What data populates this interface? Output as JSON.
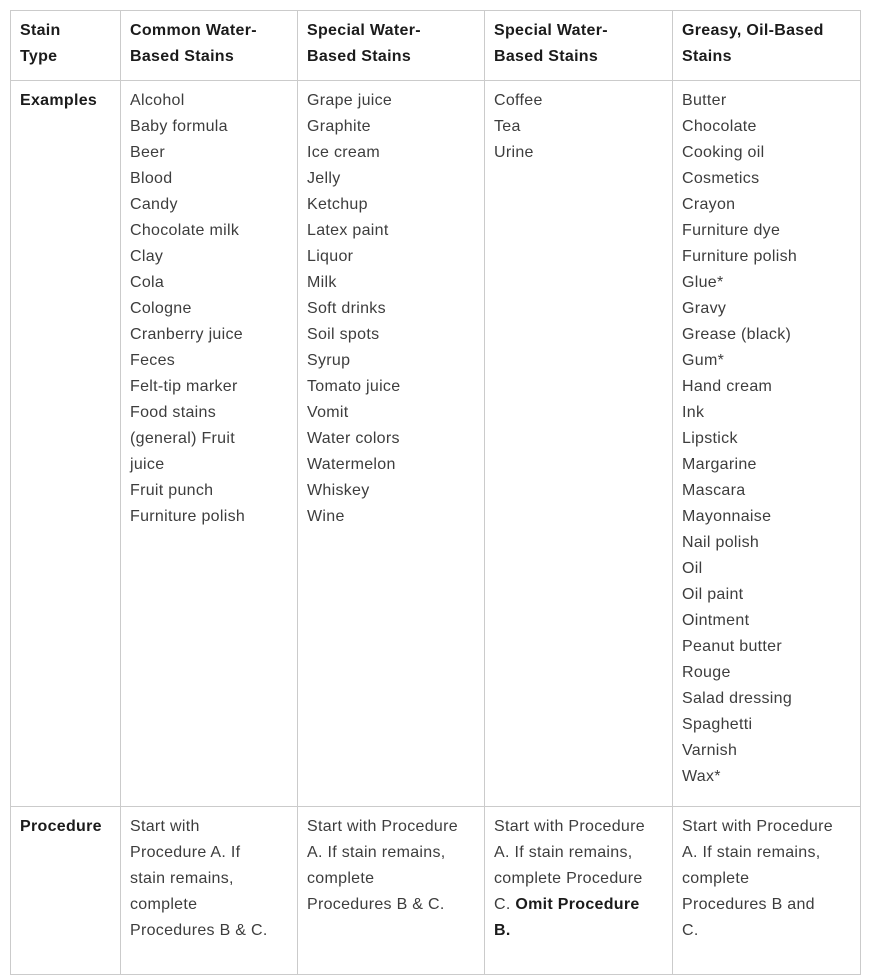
{
  "colors": {
    "background": "#ffffff",
    "border": "#cbcbcb",
    "header_text": "#1b1b1b",
    "body_text": "#3d3d3d"
  },
  "table": {
    "headers": [
      "Stain Type",
      "Common Water-Based Stains",
      "Special Water-Based Stains",
      "Special Water-Based Stains",
      "Greasy, Oil-Based Stains"
    ],
    "examples": {
      "label": "Examples",
      "columns": [
        [
          "Alcohol",
          "Baby formula",
          "Beer",
          "Blood",
          "Candy",
          "Chocolate milk",
          "Clay",
          "Cola",
          "Cologne",
          "Cranberry juice",
          "Feces",
          "Felt-tip marker",
          "Food stains (general) Fruit juice",
          "Fruit punch",
          "Furniture polish"
        ],
        [
          "Grape juice",
          "Graphite",
          "Ice cream",
          "Jelly",
          "Ketchup",
          "Latex paint",
          "Liquor",
          "Milk",
          "Soft drinks",
          "Soil spots",
          "Syrup",
          "Tomato juice",
          "Vomit",
          "Water colors",
          "Watermelon",
          "Whiskey",
          "Wine"
        ],
        [
          "Coffee",
          "Tea",
          "Urine"
        ],
        [
          "Butter",
          "Chocolate",
          "Cooking oil",
          "Cosmetics",
          "Crayon",
          "Furniture dye",
          "Furniture polish",
          "Glue*",
          "Gravy",
          "Grease (black)",
          "Gum*",
          "Hand cream",
          "Ink",
          "Lipstick",
          "Margarine",
          "Mascara",
          "Mayonnaise",
          "Nail polish",
          "Oil",
          "Oil paint",
          "Ointment",
          "Peanut butter",
          "Rouge",
          "Salad dressing",
          "Spaghetti",
          "Varnish",
          "Wax*"
        ]
      ]
    },
    "procedure": {
      "label": "Procedure",
      "cells": [
        {
          "text": "Start with Procedure A. If stain remains, complete Procedures B & C.",
          "bold": ""
        },
        {
          "text": "Start with Procedure A. If stain remains, complete Procedures B & C.",
          "bold": ""
        },
        {
          "text": "Start with Procedure A. If stain remains, complete Procedure C. ",
          "bold": "Omit Procedure B."
        },
        {
          "text": "Start with Procedure A. If stain remains, complete Procedures B and C.",
          "bold": ""
        }
      ]
    }
  }
}
